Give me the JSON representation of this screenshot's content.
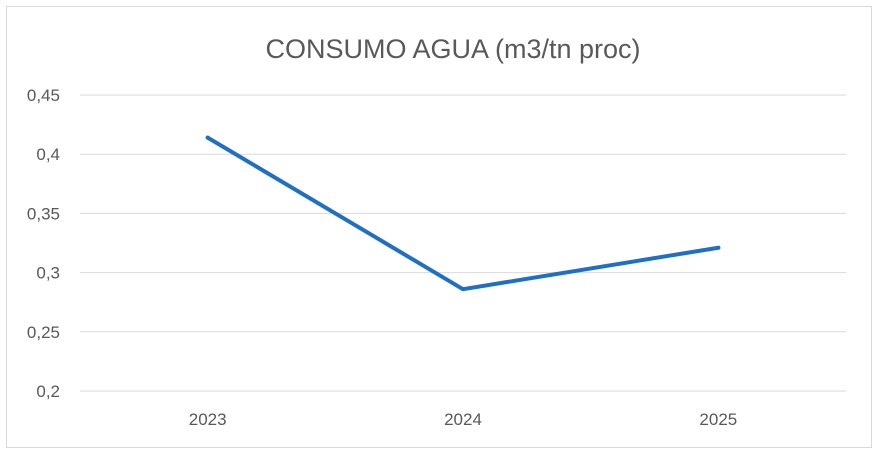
{
  "chart_data": {
    "type": "line",
    "title": "CONSUMO AGUA (m3/tn proc)",
    "categories": [
      "2023",
      "2024",
      "2025"
    ],
    "series": [
      {
        "values": [
          0.414,
          0.286,
          0.321
        ],
        "color": "#1f6fc5"
      }
    ],
    "ylim": [
      0.2,
      0.45
    ],
    "yticks": [
      "0,2",
      "0,25",
      "0,3",
      "0,35",
      "0,4",
      "0,45"
    ],
    "ytick_values": [
      0.2,
      0.25,
      0.3,
      0.35,
      0.4,
      0.45
    ],
    "grid": true,
    "gridline_color": "#d9d9d9",
    "legend": "none"
  }
}
